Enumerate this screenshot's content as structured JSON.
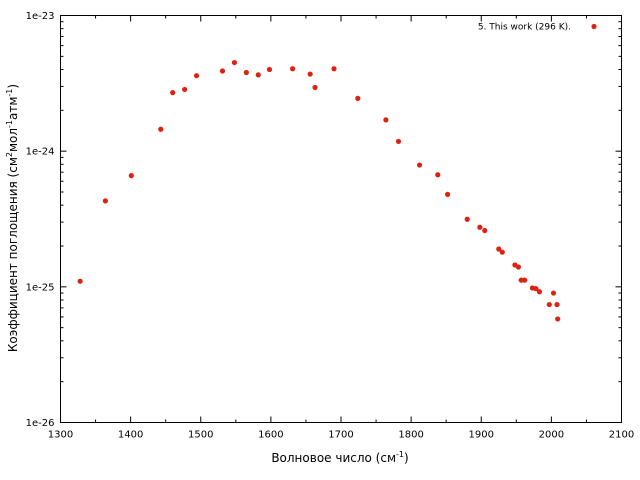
{
  "chart_data": {
    "type": "scatter",
    "xlabel_main": "Волновое число (см",
    "xlabel_sup": "-1",
    "xlabel_end": ")",
    "ylabel_parts": [
      {
        "t": "Коэффициент поглощения (см",
        "sup": false
      },
      {
        "t": "2",
        "sup": true
      },
      {
        "t": "мол",
        "sup": false
      },
      {
        "t": "-1",
        "sup": true
      },
      {
        "t": "атм",
        "sup": false
      },
      {
        "t": "-1",
        "sup": true
      },
      {
        "t": ")",
        "sup": false
      }
    ],
    "xlim": [
      1300,
      2100
    ],
    "ylim": [
      1e-26,
      1e-23
    ],
    "y_scale": "log",
    "x_ticks": [
      "1300",
      "1400",
      "1500",
      "1600",
      "1700",
      "1800",
      "1900",
      "2000",
      "2100"
    ],
    "y_ticks": [
      "1e-26",
      "1e-25",
      "1e-24",
      "1e-23"
    ],
    "grid": false,
    "legend_position": "top-right",
    "series": [
      {
        "name": "5. This work (296 K).",
        "color": "#dd2211",
        "points": [
          [
            1328,
            1.1e-25
          ],
          [
            1364,
            4.3e-25
          ],
          [
            1401,
            6.6e-25
          ],
          [
            1443,
            1.45e-24
          ],
          [
            1460,
            2.7e-24
          ],
          [
            1477,
            2.85e-24
          ],
          [
            1494,
            3.6e-24
          ],
          [
            1531,
            3.9e-24
          ],
          [
            1548,
            4.5e-24
          ],
          [
            1565,
            3.8e-24
          ],
          [
            1582,
            3.65e-24
          ],
          [
            1598,
            4e-24
          ],
          [
            1631,
            4.05e-24
          ],
          [
            1656,
            3.7e-24
          ],
          [
            1663,
            2.95e-24
          ],
          [
            1690,
            4.05e-24
          ],
          [
            1724,
            2.45e-24
          ],
          [
            1764,
            1.7e-24
          ],
          [
            1782,
            1.18e-24
          ],
          [
            1812,
            7.9e-25
          ],
          [
            1838,
            6.7e-25
          ],
          [
            1852,
            4.8e-25
          ],
          [
            1880,
            3.15e-25
          ],
          [
            1898,
            2.75e-25
          ],
          [
            1905,
            2.6e-25
          ],
          [
            1925,
            1.9e-25
          ],
          [
            1930,
            1.8e-25
          ],
          [
            1948,
            1.45e-25
          ],
          [
            1953,
            1.4e-25
          ],
          [
            1957,
            1.12e-25
          ],
          [
            1962,
            1.12e-25
          ],
          [
            1973,
            9.8e-26
          ],
          [
            1978,
            9.7e-26
          ],
          [
            1983,
            9.2e-26
          ],
          [
            1997,
            7.4e-26
          ],
          [
            2003,
            9e-26
          ],
          [
            2008,
            7.4e-26
          ],
          [
            2009,
            5.8e-26
          ]
        ]
      }
    ]
  }
}
